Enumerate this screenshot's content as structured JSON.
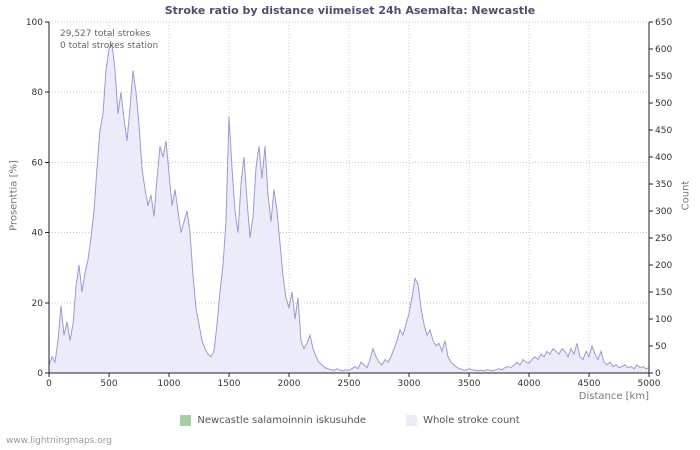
{
  "title": "Stroke ratio by distance viimeiset 24h Asemalta: Newcastle",
  "annotations": {
    "line1": "29,527 total strokes",
    "line2": "0 total strokes station"
  },
  "footer": "www.lightningmaps.org",
  "colors": {
    "area_fill": "#ebebfa",
    "area_stroke": "#9b9bd0",
    "ratio_green": "#a6cfa6",
    "grid": "#c9c9c9",
    "axis": "#222222",
    "title_text": "#4e4e6e"
  },
  "legend": [
    {
      "label": "Newcastle salamoinnin iskusuhde",
      "color": "#a6cfa6"
    },
    {
      "label": "Whole stroke count",
      "color": "#ebebfa"
    }
  ],
  "chart_data": {
    "type": "area",
    "title": "Stroke ratio by distance viimeiset 24h Asemalta: Newcastle",
    "x_label": "Distance  [km]",
    "y_left_label": "Prosenttia  [%]",
    "y_right_label": "Count",
    "x_axis": {
      "min": 0,
      "max": 5000,
      "tick_step": 500
    },
    "y_left": {
      "min": 0,
      "max": 100,
      "tick_step": 20
    },
    "y_right": {
      "min": 0,
      "max": 650,
      "tick_step": 50
    },
    "grid": true,
    "legend_position": "bottom",
    "x_start": 0,
    "x_step": 25,
    "series": [
      {
        "name": "Newcastle salamoinnin iskusuhde",
        "axis": "left",
        "color": "#a6cfa6",
        "constant": 0
      },
      {
        "name": "Whole stroke count",
        "axis": "right",
        "fill": "#ebebfa",
        "color": "#9b9bd0",
        "values": [
          15,
          30,
          20,
          60,
          125,
          70,
          95,
          60,
          90,
          160,
          200,
          150,
          185,
          210,
          250,
          300,
          380,
          450,
          480,
          560,
          600,
          610,
          560,
          480,
          520,
          470,
          430,
          490,
          560,
          520,
          460,
          380,
          340,
          310,
          330,
          290,
          360,
          420,
          400,
          430,
          370,
          310,
          340,
          300,
          260,
          280,
          300,
          260,
          180,
          120,
          90,
          60,
          45,
          35,
          30,
          40,
          90,
          150,
          200,
          280,
          475,
          380,
          300,
          260,
          350,
          400,
          320,
          250,
          290,
          380,
          420,
          360,
          420,
          330,
          280,
          340,
          300,
          240,
          180,
          140,
          120,
          150,
          100,
          140,
          60,
          45,
          55,
          70,
          45,
          30,
          20,
          15,
          10,
          8,
          6,
          5,
          8,
          5,
          4,
          6,
          5,
          8,
          12,
          8,
          20,
          15,
          10,
          25,
          45,
          30,
          20,
          15,
          25,
          20,
          30,
          45,
          60,
          80,
          70,
          90,
          110,
          140,
          175,
          165,
          120,
          90,
          70,
          80,
          60,
          50,
          55,
          40,
          60,
          30,
          20,
          15,
          10,
          8,
          6,
          5,
          8,
          6,
          5,
          4,
          5,
          4,
          6,
          5,
          4,
          6,
          8,
          6,
          10,
          12,
          10,
          15,
          20,
          15,
          25,
          20,
          18,
          25,
          30,
          25,
          35,
          30,
          40,
          35,
          45,
          40,
          35,
          45,
          40,
          30,
          45,
          35,
          55,
          30,
          25,
          40,
          30,
          50,
          35,
          25,
          40,
          20,
          15,
          20,
          12,
          15,
          10,
          12,
          15,
          10,
          12,
          8,
          15,
          10,
          12,
          8,
          10
        ]
      }
    ]
  }
}
